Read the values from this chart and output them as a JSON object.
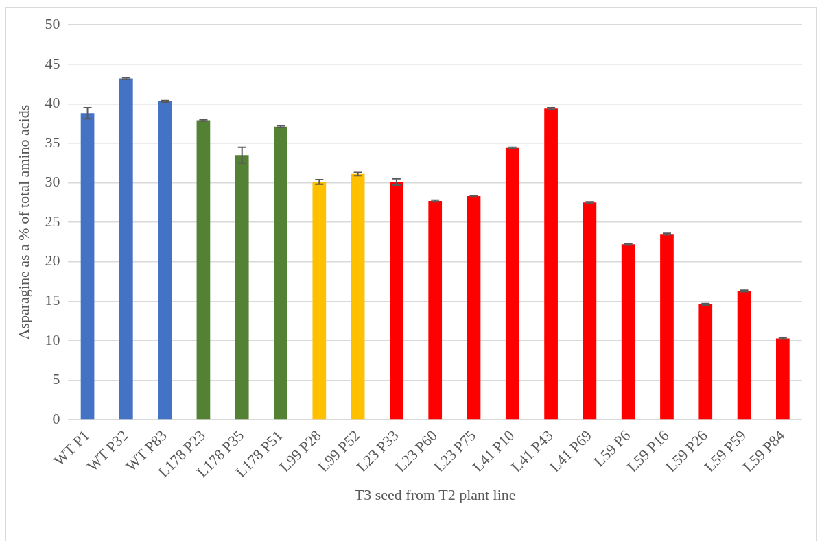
{
  "chart_data": {
    "type": "bar",
    "xlabel": "T3 seed from T2 plant line",
    "ylabel": "Asparagine as a % of total amino acids",
    "categories": [
      "WT P1",
      "WT P32",
      "WT P83",
      "L178 P23",
      "L178 P35",
      "L178 P51",
      "L99 P28",
      "L99 P52",
      "L23 P33",
      "L23 P60",
      "L23 P75",
      "L41 P10",
      "L41 P43",
      "L41 P69",
      "L59 P6",
      "L59 P16",
      "L59 P26",
      "L59 P59",
      "L59 P84"
    ],
    "values": [
      38.8,
      43.2,
      40.3,
      37.9,
      33.5,
      37.1,
      30.1,
      31.1,
      30.1,
      27.7,
      28.3,
      34.4,
      39.4,
      27.5,
      22.2,
      23.5,
      14.6,
      16.3,
      10.3
    ],
    "errors": [
      0.7,
      0.1,
      0.1,
      0.1,
      1.0,
      0.1,
      0.3,
      0.2,
      0.4,
      0.1,
      0.1,
      0.1,
      0.1,
      0.1,
      0.1,
      0.1,
      0.1,
      0.1,
      0.1
    ],
    "colors": [
      "#4472c4",
      "#4472c4",
      "#4472c4",
      "#548235",
      "#548235",
      "#548235",
      "#ffc000",
      "#ffc000",
      "#ff0000",
      "#ff0000",
      "#ff0000",
      "#ff0000",
      "#ff0000",
      "#ff0000",
      "#ff0000",
      "#ff0000",
      "#ff0000",
      "#ff0000",
      "#ff0000"
    ],
    "ylim": [
      0,
      50
    ],
    "yticks": [
      0,
      5,
      10,
      15,
      20,
      25,
      30,
      35,
      40,
      45,
      50
    ],
    "grid": "y",
    "legend": false
  }
}
